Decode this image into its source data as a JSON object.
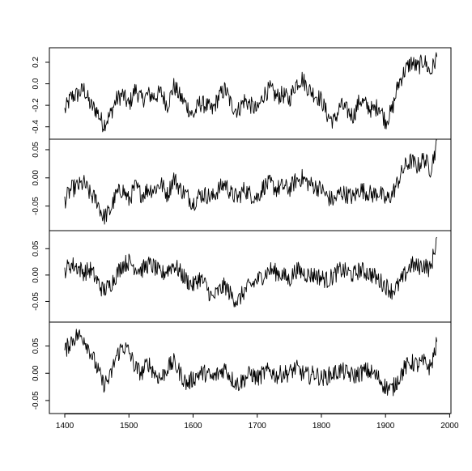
{
  "chart_data": [
    {
      "type": "line",
      "panel": 1,
      "x_range": [
        1400,
        1980
      ],
      "ylim": [
        -0.47,
        0.29
      ],
      "yticks": [
        0.2,
        0.0,
        -0.2,
        -0.4
      ],
      "ytick_labels": [
        "0.2",
        "0.0",
        "-0.2",
        "-0.4"
      ],
      "grid": false,
      "series": [
        {
          "x": [
            1400,
            1410,
            1420,
            1430,
            1440,
            1450,
            1460,
            1470,
            1480,
            1490,
            1500,
            1510,
            1520,
            1530,
            1540,
            1550,
            1560,
            1570,
            1580,
            1590,
            1600,
            1610,
            1620,
            1630,
            1640,
            1650,
            1660,
            1670,
            1680,
            1690,
            1700,
            1710,
            1720,
            1730,
            1740,
            1750,
            1760,
            1770,
            1780,
            1790,
            1800,
            1810,
            1820,
            1830,
            1840,
            1850,
            1860,
            1870,
            1880,
            1890,
            1900,
            1910,
            1920,
            1930,
            1940,
            1950,
            1960,
            1970,
            1980
          ],
          "y": [
            -0.25,
            -0.12,
            -0.1,
            -0.05,
            -0.2,
            -0.25,
            -0.38,
            -0.3,
            -0.15,
            -0.1,
            -0.2,
            -0.05,
            -0.15,
            -0.1,
            -0.12,
            -0.08,
            -0.2,
            -0.02,
            -0.12,
            -0.2,
            -0.3,
            -0.18,
            -0.2,
            -0.25,
            -0.12,
            -0.05,
            -0.2,
            -0.25,
            -0.15,
            -0.2,
            -0.25,
            -0.1,
            -0.05,
            -0.12,
            -0.1,
            -0.15,
            0.0,
            0.05,
            -0.05,
            -0.1,
            -0.15,
            -0.3,
            -0.35,
            -0.2,
            -0.25,
            -0.3,
            -0.15,
            -0.2,
            -0.25,
            -0.2,
            -0.35,
            -0.25,
            0.0,
            0.12,
            0.2,
            0.15,
            0.22,
            0.1,
            0.25
          ]
        }
      ]
    },
    {
      "type": "line",
      "panel": 2,
      "x_range": [
        1400,
        1980
      ],
      "ylim": [
        -0.085,
        0.06
      ],
      "yticks": [
        0.05,
        0.0,
        -0.05
      ],
      "ytick_labels": [
        "0.05",
        "0.00",
        "-0.05"
      ],
      "grid": false,
      "series": [
        {
          "x": [
            1400,
            1410,
            1420,
            1430,
            1440,
            1450,
            1460,
            1470,
            1480,
            1490,
            1500,
            1510,
            1520,
            1530,
            1540,
            1550,
            1560,
            1570,
            1580,
            1590,
            1600,
            1610,
            1620,
            1630,
            1640,
            1650,
            1660,
            1670,
            1680,
            1690,
            1700,
            1710,
            1720,
            1730,
            1740,
            1750,
            1760,
            1770,
            1780,
            1790,
            1800,
            1810,
            1820,
            1830,
            1840,
            1850,
            1860,
            1870,
            1880,
            1890,
            1900,
            1910,
            1920,
            1930,
            1940,
            1950,
            1960,
            1970,
            1980
          ],
          "y": [
            -0.04,
            -0.02,
            -0.015,
            -0.01,
            -0.03,
            -0.04,
            -0.07,
            -0.06,
            -0.03,
            -0.02,
            -0.04,
            -0.015,
            -0.03,
            -0.02,
            -0.02,
            -0.01,
            -0.03,
            0.0,
            -0.02,
            -0.03,
            -0.045,
            -0.03,
            -0.03,
            -0.035,
            -0.02,
            -0.01,
            -0.03,
            -0.035,
            -0.02,
            -0.03,
            -0.035,
            -0.015,
            -0.01,
            -0.02,
            -0.015,
            -0.02,
            -0.005,
            0.0,
            -0.01,
            -0.015,
            -0.02,
            -0.035,
            -0.04,
            -0.025,
            -0.03,
            -0.035,
            -0.02,
            -0.025,
            -0.03,
            -0.025,
            -0.04,
            -0.03,
            -0.005,
            0.02,
            0.03,
            0.02,
            0.035,
            0.015,
            0.06
          ]
        }
      ]
    },
    {
      "type": "line",
      "panel": 3,
      "x_range": [
        1400,
        1980
      ],
      "ylim": [
        -0.08,
        0.075
      ],
      "yticks": [
        0.05,
        0.0,
        -0.05
      ],
      "ytick_labels": [
        "0.05",
        "0.00",
        "-0.05"
      ],
      "grid": false,
      "series": [
        {
          "x": [
            1400,
            1410,
            1420,
            1430,
            1440,
            1450,
            1460,
            1470,
            1480,
            1490,
            1500,
            1510,
            1520,
            1530,
            1540,
            1550,
            1560,
            1570,
            1580,
            1590,
            1600,
            1610,
            1620,
            1630,
            1640,
            1650,
            1660,
            1670,
            1680,
            1690,
            1700,
            1710,
            1720,
            1730,
            1740,
            1750,
            1760,
            1770,
            1780,
            1790,
            1800,
            1810,
            1820,
            1830,
            1840,
            1850,
            1860,
            1870,
            1880,
            1890,
            1900,
            1910,
            1920,
            1930,
            1940,
            1950,
            1960,
            1970,
            1980
          ],
          "y": [
            0.01,
            0.02,
            0.015,
            0.005,
            0.01,
            -0.01,
            -0.03,
            -0.02,
            0.0,
            0.02,
            0.025,
            0.015,
            0.01,
            0.02,
            0.015,
            0.0,
            0.01,
            0.02,
            0.005,
            -0.01,
            -0.02,
            -0.005,
            -0.02,
            -0.045,
            -0.03,
            -0.02,
            -0.04,
            -0.05,
            -0.03,
            -0.02,
            -0.01,
            0.0,
            0.01,
            0.005,
            0.0,
            -0.01,
            0.01,
            0.005,
            0.0,
            0.0,
            -0.005,
            -0.01,
            0.0,
            0.01,
            0.005,
            0.0,
            0.01,
            0.005,
            0.0,
            -0.01,
            -0.02,
            -0.03,
            -0.02,
            0.0,
            0.02,
            0.015,
            0.02,
            0.01,
            0.07
          ]
        }
      ]
    },
    {
      "type": "line",
      "panel": 4,
      "x_range": [
        1400,
        1980
      ],
      "ylim": [
        -0.065,
        0.085
      ],
      "yticks": [
        0.05,
        0.0,
        -0.05
      ],
      "ytick_labels": [
        "0.05",
        "0.00",
        "-0.05"
      ],
      "xticks": [
        1400,
        1500,
        1600,
        1700,
        1800,
        1900,
        2000
      ],
      "xtick_labels": [
        "1400",
        "1500",
        "1600",
        "1700",
        "1800",
        "1900",
        "2000"
      ],
      "grid": false,
      "series": [
        {
          "x": [
            1400,
            1410,
            1420,
            1430,
            1440,
            1450,
            1460,
            1470,
            1480,
            1490,
            1500,
            1510,
            1520,
            1530,
            1540,
            1550,
            1560,
            1570,
            1580,
            1590,
            1600,
            1610,
            1620,
            1630,
            1640,
            1650,
            1660,
            1670,
            1680,
            1690,
            1700,
            1710,
            1720,
            1730,
            1740,
            1750,
            1760,
            1770,
            1780,
            1790,
            1800,
            1810,
            1820,
            1830,
            1840,
            1850,
            1860,
            1870,
            1880,
            1890,
            1900,
            1910,
            1920,
            1930,
            1940,
            1950,
            1960,
            1970,
            1980
          ],
          "y": [
            0.04,
            0.06,
            0.07,
            0.065,
            0.04,
            0.01,
            -0.02,
            -0.01,
            0.03,
            0.05,
            0.04,
            0.01,
            0.0,
            0.02,
            0.0,
            -0.01,
            0.01,
            0.02,
            0.0,
            -0.02,
            -0.01,
            0.0,
            0.0,
            -0.01,
            0.0,
            0.01,
            -0.01,
            -0.02,
            -0.01,
            0.0,
            -0.01,
            0.0,
            0.005,
            -0.005,
            0.0,
            0.0,
            0.01,
            0.0,
            -0.005,
            0.0,
            -0.01,
            -0.005,
            0.0,
            0.005,
            0.0,
            -0.005,
            0.0,
            0.005,
            0.0,
            -0.01,
            -0.025,
            -0.03,
            -0.01,
            0.01,
            0.02,
            0.015,
            0.02,
            0.01,
            0.055
          ]
        }
      ]
    }
  ]
}
